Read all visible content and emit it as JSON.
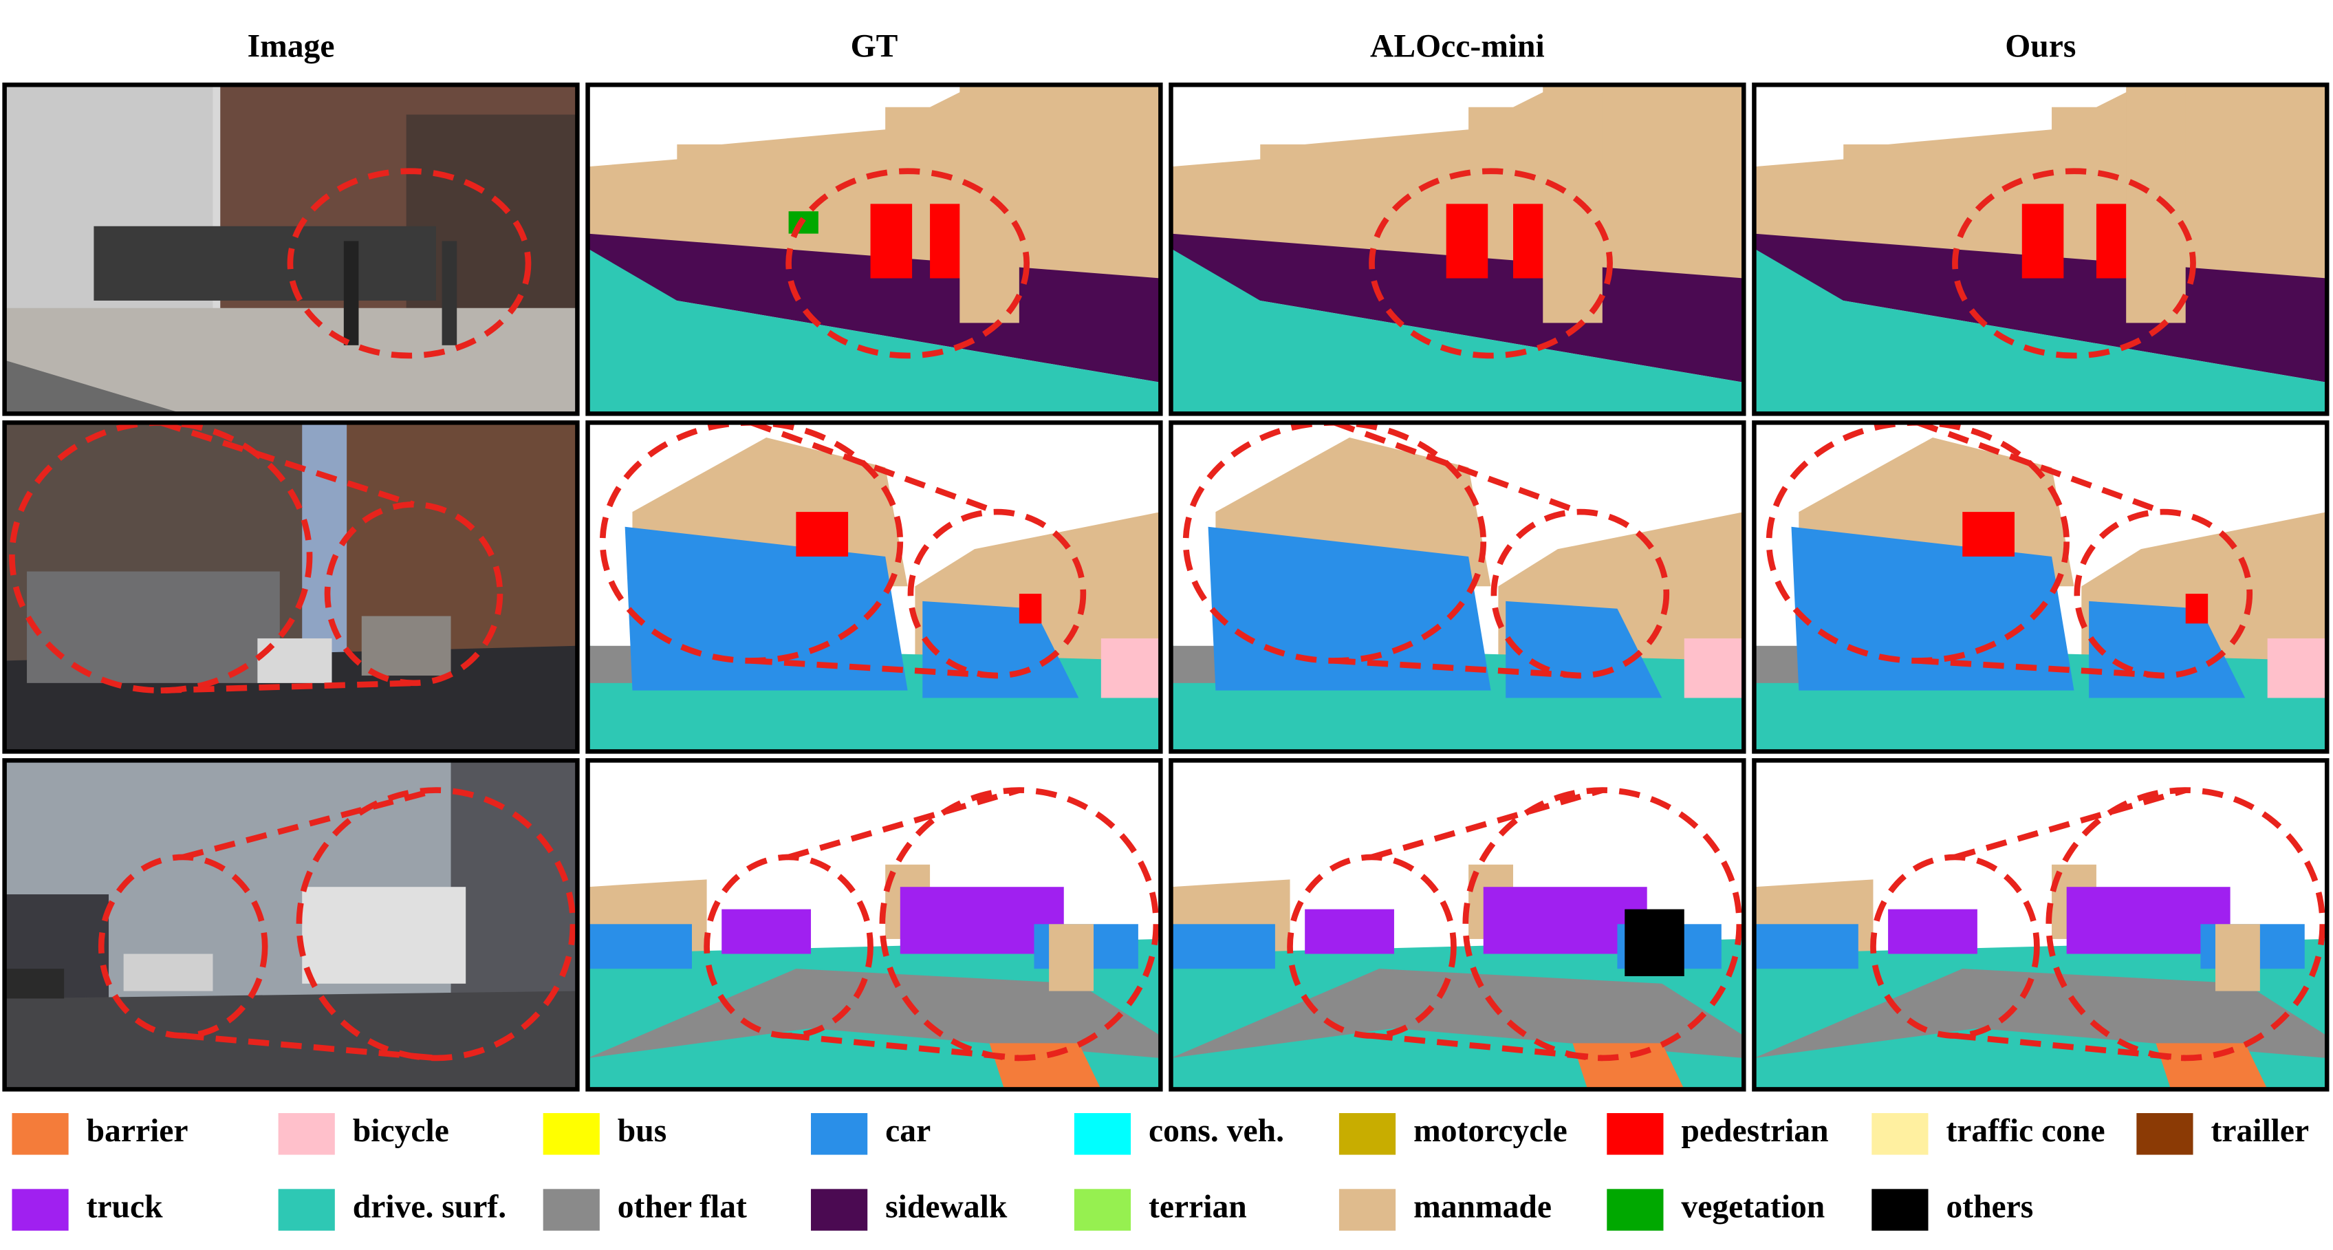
{
  "columns": [
    "Image",
    "GT",
    "ALOcc-mini",
    "Ours"
  ],
  "legend": [
    {
      "label": "barrier",
      "color": "#f47c3a"
    },
    {
      "label": "bicycle",
      "color": "#ffc0cb"
    },
    {
      "label": "bus",
      "color": "#ffff00"
    },
    {
      "label": "car",
      "color": "#2a8fe8"
    },
    {
      "label": "cons. veh.",
      "color": "#00ffff"
    },
    {
      "label": "motorcycle",
      "color": "#c8ad00"
    },
    {
      "label": "pedestrian",
      "color": "#ff0000"
    },
    {
      "label": "traffic cone",
      "color": "#fff0a0"
    },
    {
      "label": "trailler",
      "color": "#8b3a05"
    },
    {
      "label": "truck",
      "color": "#a020f0"
    },
    {
      "label": "drive. surf.",
      "color": "#2ec8b4"
    },
    {
      "label": "other flat",
      "color": "#8a8a8a"
    },
    {
      "label": "sidewalk",
      "color": "#4b0a52"
    },
    {
      "label": "terrian",
      "color": "#96f050"
    },
    {
      "label": "manmade",
      "color": "#dfbb8d"
    },
    {
      "label": "vegetation",
      "color": "#00a800"
    },
    {
      "label": "others",
      "color": "#000000"
    }
  ]
}
